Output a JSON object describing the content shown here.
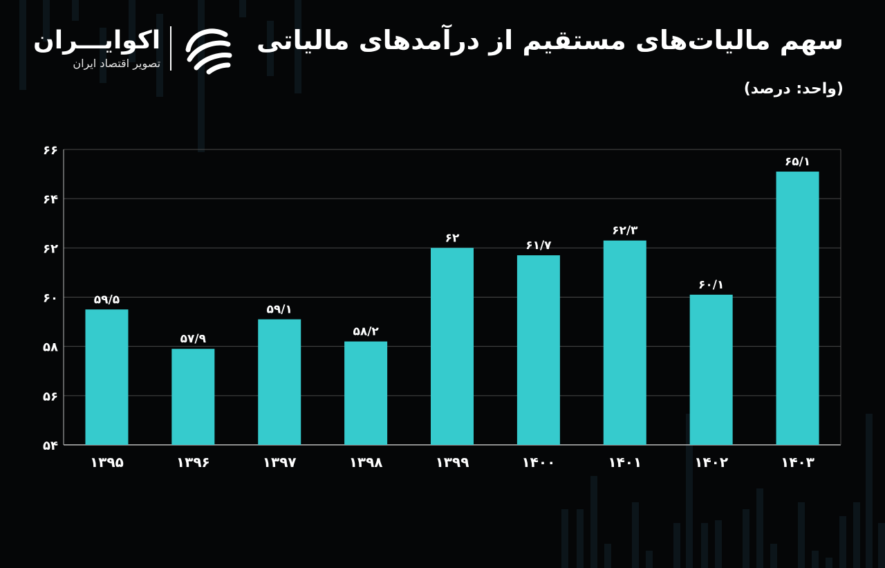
{
  "header": {
    "title": "سهم مالیات‌های مستقیم از درآمدهای مالیاتی",
    "unit": "(واحد: درصد)"
  },
  "brand": {
    "name": "اکوایـــران",
    "tagline": "تصویر اقتصاد ایران",
    "logo_icon": "ecoiran-logo-icon"
  },
  "colors": {
    "bar": "#36cbcd",
    "background": "#050607",
    "grid": "#4a4a4a"
  },
  "chart_data": {
    "type": "bar",
    "title": "سهم مالیات‌های مستقیم از درآمدهای مالیاتی",
    "categories": [
      "۱۳۹۵",
      "۱۳۹۶",
      "۱۳۹۷",
      "۱۳۹۸",
      "۱۳۹۹",
      "۱۴۰۰",
      "۱۴۰۱",
      "۱۴۰۲",
      "۱۴۰۳"
    ],
    "values": [
      59.5,
      57.9,
      59.1,
      58.2,
      62,
      61.7,
      62.3,
      60.1,
      65.1
    ],
    "data_labels": [
      "۵۹/۵",
      "۵۷/۹",
      "۵۹/۱",
      "۵۸/۲",
      "۶۲",
      "۶۱/۷",
      "۶۲/۳",
      "۶۰/۱",
      "۶۵/۱"
    ],
    "yticks": [
      54,
      56,
      58,
      60,
      62,
      64,
      66
    ],
    "ytick_labels": [
      "۵۴",
      "۵۶",
      "۵۸",
      "۶۰",
      "۶۲",
      "۶۴",
      "۶۶"
    ],
    "ylim": [
      54,
      66
    ],
    "xlabel": "",
    "ylabel": "",
    "grid": true
  }
}
